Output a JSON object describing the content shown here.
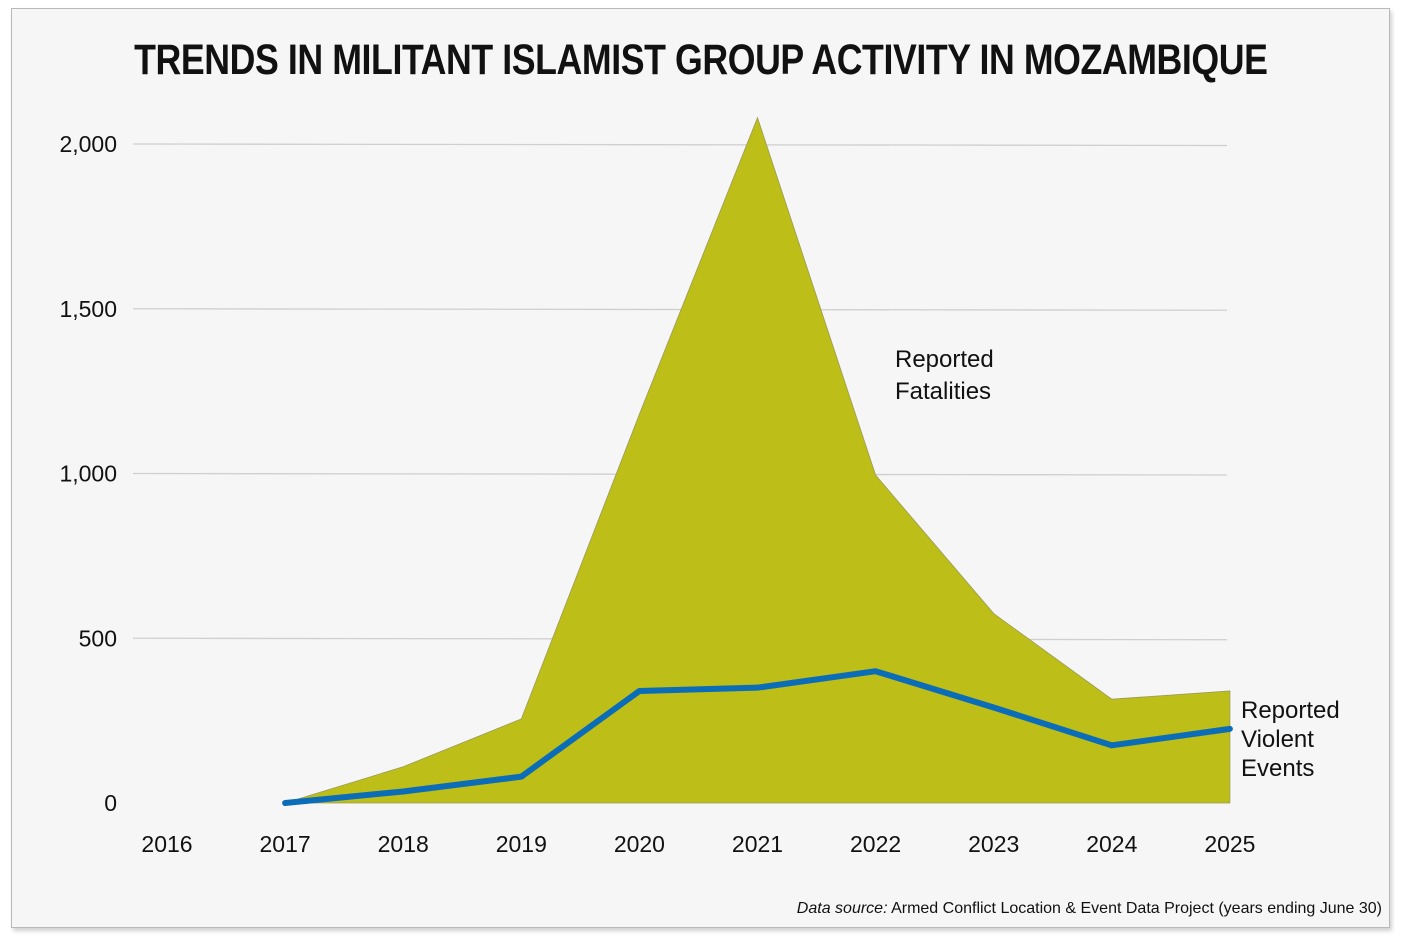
{
  "title": "TRENDS IN MILITANT ISLAMIST GROUP ACTIVITY IN MOZAMBIQUE",
  "source": {
    "prefix": "Data source:",
    "text": "Armed Conflict Location & Event Data Project (years ending June 30)"
  },
  "chart_data": {
    "type": "area",
    "categories": [
      "2016",
      "2017",
      "2018",
      "2019",
      "2020",
      "2021",
      "2022",
      "2023",
      "2024",
      "2025"
    ],
    "ylim": [
      0,
      2000
    ],
    "yticks": [
      0,
      500,
      1000,
      1500,
      2000
    ],
    "ytick_labels": [
      "0",
      "500",
      "1,000",
      "1,500",
      "2,000"
    ],
    "grid": true,
    "legend": "none",
    "series": [
      {
        "name": "Reported Fatalities",
        "label_lines": [
          "Reported",
          "Fatalities"
        ],
        "kind": "area",
        "color": "#bdbe17",
        "values": [
          null,
          0,
          110,
          255,
          1180,
          2080,
          995,
          575,
          315,
          340
        ]
      },
      {
        "name": "Reported Violent Events",
        "label_lines": [
          "Reported",
          "Violent",
          "Events"
        ],
        "kind": "line",
        "color": "#0b6cb8",
        "values": [
          null,
          0,
          35,
          80,
          340,
          350,
          400,
          290,
          175,
          225
        ]
      }
    ]
  }
}
